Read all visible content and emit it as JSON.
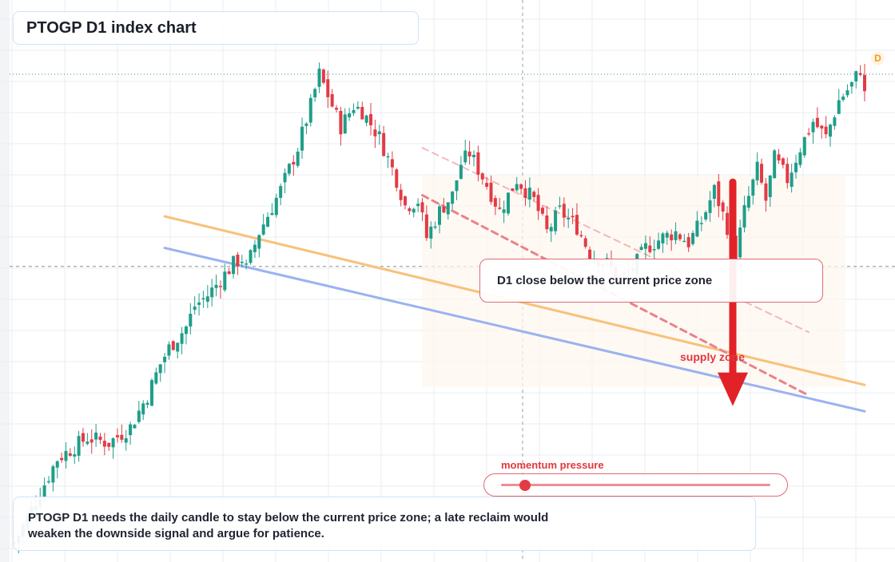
{
  "title": "PTOGP D1 index chart",
  "callout": "D1 close below the current price zone",
  "supply_label": "supply zone",
  "momentum": {
    "label": "momentum pressure",
    "level": 0.09
  },
  "bottom_note": "PTOGP D1 needs the daily candle to stay below the current price zone; a late reclaim would weaken the downside signal and argue for patience.",
  "timeframe_badge": "D",
  "colors": {
    "up": "#1e9e89",
    "down": "#e23b45",
    "orange_line": "#f7c27a",
    "blue_line": "#9ab2ef",
    "channel": "#e8838a",
    "arrow": "#e12228"
  },
  "chart_data": {
    "type": "candlestick",
    "title": "PTOGP D1 index chart",
    "y_range": [
      0,
      100
    ],
    "grid": true,
    "current_price_level": 55.5,
    "close_path": [
      [
        0,
        3
      ],
      [
        10,
        19
      ],
      [
        17,
        23
      ],
      [
        22,
        22
      ],
      [
        27,
        25
      ],
      [
        31,
        31
      ],
      [
        34,
        37
      ],
      [
        36,
        40
      ],
      [
        40,
        44
      ],
      [
        42,
        48
      ],
      [
        45,
        50
      ],
      [
        49,
        54
      ],
      [
        51,
        56
      ],
      [
        53,
        57
      ],
      [
        54,
        55
      ],
      [
        57,
        62
      ],
      [
        62,
        70
      ],
      [
        66,
        78
      ],
      [
        69,
        86
      ],
      [
        71,
        92
      ],
      [
        73,
        88
      ],
      [
        76,
        82
      ],
      [
        79,
        86
      ],
      [
        81,
        85
      ],
      [
        85,
        80
      ],
      [
        89,
        72
      ],
      [
        91,
        67
      ],
      [
        94,
        68
      ],
      [
        96,
        61
      ],
      [
        99,
        66
      ],
      [
        102,
        69
      ],
      [
        104,
        75
      ],
      [
        106,
        77
      ],
      [
        110,
        71
      ],
      [
        113,
        66
      ],
      [
        117,
        72
      ],
      [
        121,
        68
      ],
      [
        124,
        62
      ],
      [
        127,
        66
      ],
      [
        131,
        63
      ],
      [
        134,
        58
      ],
      [
        138,
        56
      ],
      [
        141,
        53
      ],
      [
        144,
        55
      ],
      [
        147,
        59
      ],
      [
        151,
        61
      ],
      [
        154,
        62
      ],
      [
        157,
        60
      ],
      [
        160,
        64
      ],
      [
        163,
        70
      ],
      [
        166,
        63
      ],
      [
        168,
        58
      ],
      [
        170,
        66
      ],
      [
        173,
        74
      ],
      [
        175,
        68
      ],
      [
        177,
        76
      ],
      [
        180,
        72
      ],
      [
        183,
        78
      ],
      [
        186,
        83
      ],
      [
        189,
        80
      ],
      [
        192,
        87
      ],
      [
        195,
        90
      ],
      [
        197,
        93
      ],
      [
        198,
        88
      ]
    ],
    "lines": [
      {
        "name": "",
        "color": "orange",
        "from": [
          35,
          65
        ],
        "to": [
          198,
          33
        ]
      },
      {
        "name": "",
        "color": "blue",
        "from": [
          35,
          59
        ],
        "to": [
          198,
          28
        ]
      },
      {
        "name": "",
        "color": "red-dashed",
        "from": [
          95,
          69
        ],
        "to": [
          185,
          31
        ],
        "style": "dashed"
      },
      {
        "name": "",
        "color": "red-dashed-light",
        "from": [
          95,
          78
        ],
        "to": [
          185,
          43
        ],
        "style": "dashed-light"
      }
    ],
    "arrow": {
      "label": "supply zone",
      "from_y": 71.5,
      "to_y": 29
    }
  }
}
